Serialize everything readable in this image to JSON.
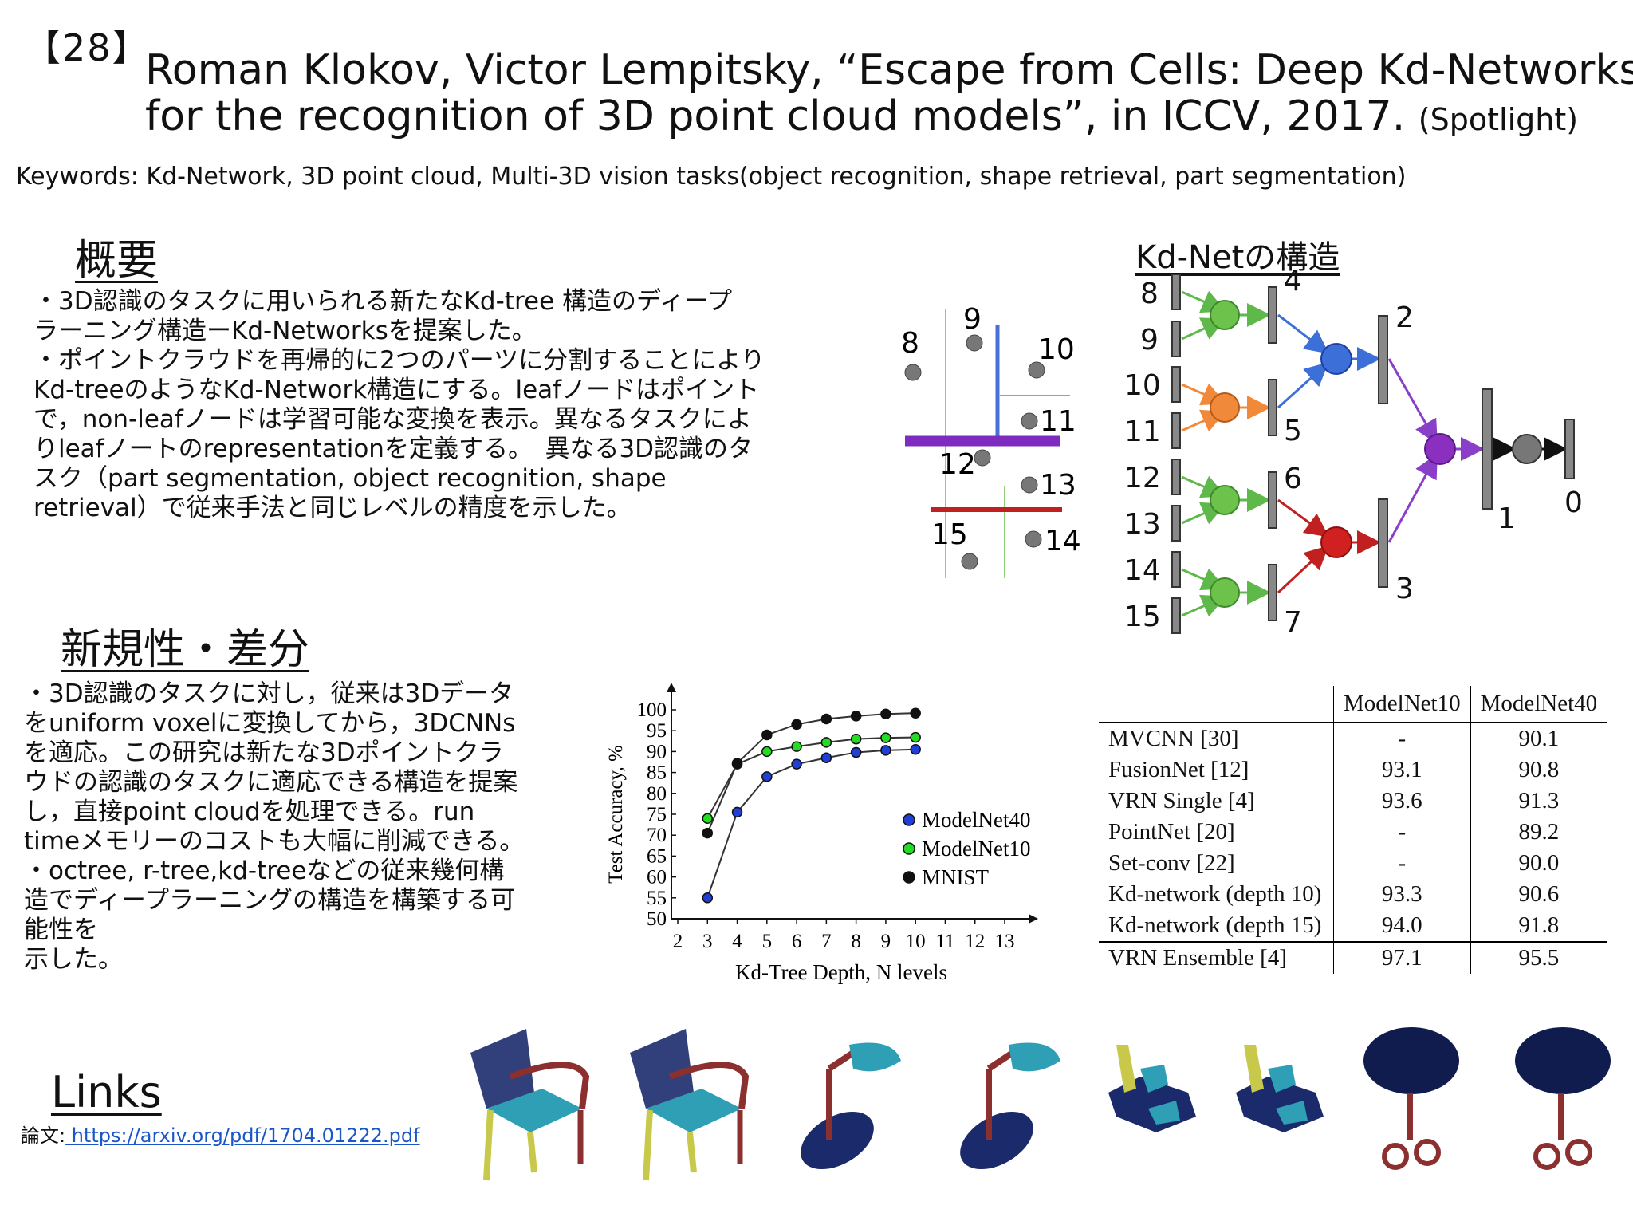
{
  "slide": {
    "id_badge": "【28】",
    "title_line1": "Roman Klokov, Victor Lempitsky, “Escape from Cells: Deep Kd-Networks",
    "title_line2": "for the recognition of 3D point cloud models”, in ICCV, 2017.",
    "spotlight": "(Spotlight)",
    "keywords": "Keywords: Kd-Network, 3D point cloud, Multi-3D vision tasks(object recognition, shape retrieval, part segmentation)"
  },
  "overview": {
    "heading": "概要",
    "text": "・3D認識のタスクに用いられる新たなKd-tree 構造のディープ\nラーニング構造ーKd-Networksを提案した。\n・ポイントクラウドを再帰的に2つのパーツに分割することにより\nKd-treeのようなKd-Network構造にする。leafノードはポイント\nで，non-leafノードは学習可能な変換を表示。異なるタスクによ\nりleafノートのrepresentationを定義する。　異なる3D認識のタ\nスク（part segmentation, object recognition, shape\nretrieval）で従来手法と同じレベルの精度を示した。"
  },
  "novelty": {
    "heading": "新規性・差分",
    "text": "・3D認識のタスクに対し，従来は3Dデータ\nをuniform voxelに変換してから，3DCNNs\nを適応。この研究は新たな3Dポイントクラ\nウドの認識のタスクに適応できる構造を提案\nし，直接point cloudを処理できる。run\ntimeメモリーのコストも大幅に削減できる。\n・octree, r-tree,kd-treeなどの従来幾何構\n造でディープラーニングの構造を構築する可\n能性を\n示した。"
  },
  "links": {
    "heading": "Links",
    "label": "論文:",
    "url": " https://arxiv.org/pdf/1704.01222.pdf"
  },
  "kdnet": {
    "heading": "Kd-Netの構造",
    "partition_labels": [
      "8",
      "9",
      "10",
      "11",
      "12",
      "13",
      "14",
      "15"
    ],
    "leaf_labels": [
      "8",
      "9",
      "10",
      "11",
      "12",
      "13",
      "14",
      "15"
    ],
    "inner_labels": [
      "4",
      "5",
      "6",
      "7",
      "2",
      "3",
      "1",
      "0"
    ]
  },
  "chart_data": {
    "type": "line",
    "xlabel": "Kd-Tree Depth, N levels",
    "ylabel": "Test Accuracy, %",
    "x_ticks": [
      "2",
      "3",
      "4",
      "5",
      "6",
      "7",
      "8",
      "9",
      "10",
      "11",
      "12",
      "13"
    ],
    "y_ticks": [
      "100",
      "95",
      "90",
      "85",
      "80",
      "75",
      "70",
      "65",
      "60",
      "55",
      "50"
    ],
    "xlim": [
      2,
      13
    ],
    "ylim": [
      50,
      100
    ],
    "x": [
      3,
      4,
      5,
      6,
      7,
      8,
      9,
      10
    ],
    "series": [
      {
        "name": "ModelNet40",
        "color": "#1f3fd6",
        "values": [
          55,
          75.5,
          84,
          87,
          88.5,
          89.8,
          90.3,
          90.5
        ]
      },
      {
        "name": "ModelNet10",
        "color": "#22dd22",
        "values": [
          74,
          87,
          90,
          91.2,
          92.2,
          93,
          93.3,
          93.4
        ]
      },
      {
        "name": "MNIST",
        "color": "#111111",
        "values": [
          70.5,
          87.2,
          94,
          96.5,
          97.8,
          98.5,
          99,
          99.2
        ]
      }
    ],
    "legend_position": "right"
  },
  "table": {
    "headers": [
      "",
      "ModelNet10",
      "ModelNet40"
    ],
    "rows": [
      [
        "MVCNN [30]",
        "-",
        "90.1"
      ],
      [
        "FusionNet [12]",
        "93.1",
        "90.8"
      ],
      [
        "VRN Single [4]",
        "93.6",
        "91.3"
      ],
      [
        "PointNet [20]",
        "-",
        "89.2"
      ],
      [
        "Set-conv [22]",
        "-",
        "90.0"
      ],
      [
        "Kd-network (depth 10)",
        "93.3",
        "90.6"
      ],
      [
        "Kd-network (depth 15)",
        "94.0",
        "91.8"
      ],
      [
        "VRN Ensemble [4]",
        "97.1",
        "95.5"
      ]
    ]
  },
  "shapes": {
    "names": [
      "chair-icon",
      "chair-icon",
      "lamp-icon",
      "lamp-icon",
      "airplane-icon",
      "airplane-icon",
      "table-icon",
      "table-icon"
    ],
    "colors": {
      "top": "#1b2a6b",
      "mid": "#2f9fb5",
      "leg": "#c8c84a",
      "arm": "#8b2f2f"
    }
  }
}
